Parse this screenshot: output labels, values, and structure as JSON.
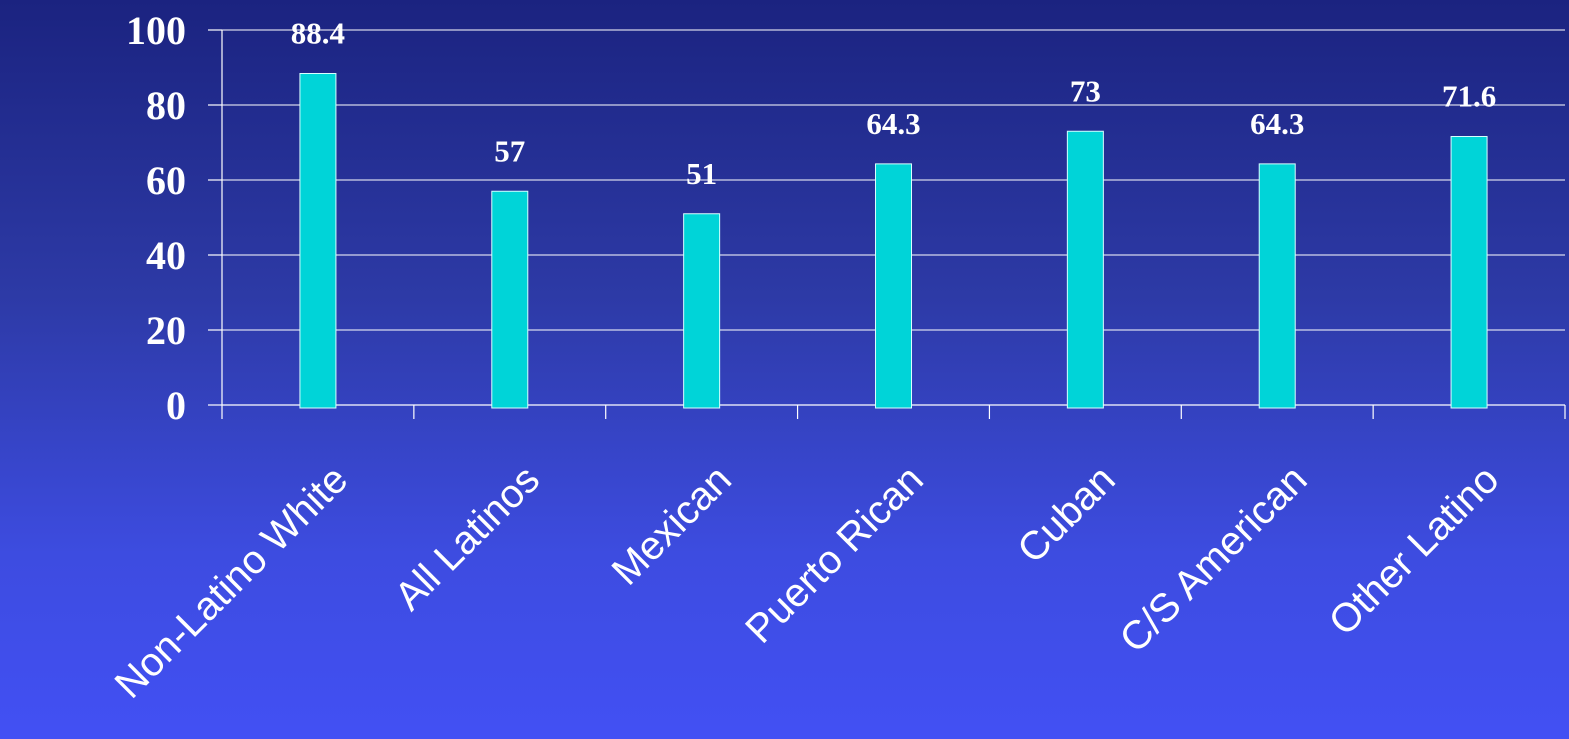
{
  "chart_data": {
    "type": "bar",
    "categories": [
      "Non-Latino White",
      "All Latinos",
      "Mexican",
      "Puerto Rican",
      "Cuban",
      "C/S American",
      "Other Latino"
    ],
    "values": [
      88.4,
      57,
      51,
      64.3,
      73,
      64.3,
      71.6
    ],
    "data_labels": [
      "88.4",
      "57",
      "51",
      "64.3",
      "73",
      "64.3",
      "71.6"
    ],
    "ylim": [
      0,
      100
    ],
    "yticks": [
      0,
      20,
      40,
      60,
      80,
      100
    ],
    "ytick_labels": [
      "0",
      "20",
      "40",
      "60",
      "80",
      "100"
    ],
    "grid": true,
    "bar_color": "#00d4d8",
    "background_color": "#2d3aa6"
  }
}
